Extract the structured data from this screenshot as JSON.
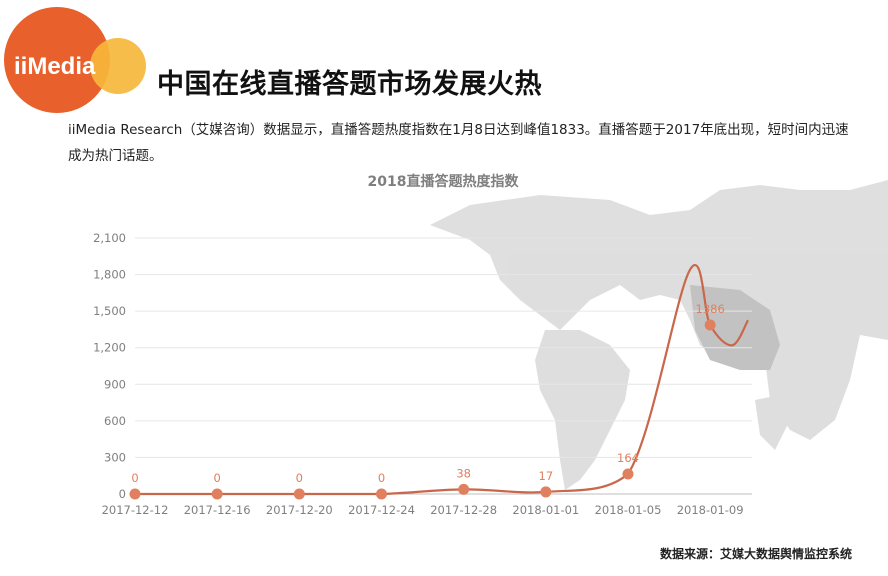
{
  "brand": {
    "name": "iiMedia",
    "accent": "#e8602c",
    "secondary": "#f6b73c"
  },
  "header": {
    "title": "中国在线直播答题市场发展火热",
    "description": "iiMedia Research（艾媒咨询）数据显示，直播答题热度指数在1月8日达到峰值1833。直播答题于2017年底出现，短时间内迅速成为热门话题。"
  },
  "source_note": "数据来源：艾媒大数据舆情监控系统",
  "chart_data": {
    "type": "line",
    "title": "2018直播答题热度指数",
    "x": [
      "2017-12-12",
      "2017-12-16",
      "2017-12-20",
      "2017-12-24",
      "2017-12-28",
      "2018-01-01",
      "2018-01-05",
      "2018-01-09"
    ],
    "values": [
      0,
      0,
      0,
      0,
      38,
      17,
      164,
      1386
    ],
    "data_labels": [
      "0",
      "0",
      "0",
      "0",
      "38",
      "17",
      "164",
      "1386"
    ],
    "y_ticks": [
      "0",
      "300",
      "600",
      "900",
      "1,200",
      "1,500",
      "1,800",
      "2,100"
    ],
    "ylim": [
      0,
      2100
    ],
    "peak": {
      "date": "2018-01-08",
      "value": 1833
    },
    "line_color": "#c9674a",
    "marker_color": "#e0805f",
    "grid": true,
    "legend": "none"
  }
}
